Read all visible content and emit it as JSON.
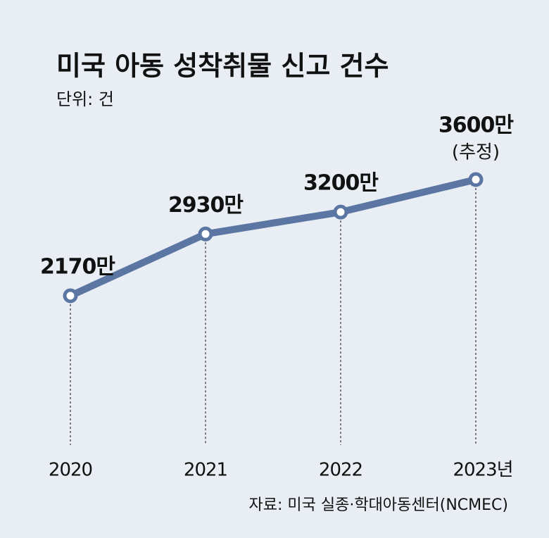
{
  "chart_data": {
    "type": "line",
    "title": "미국 아동 성착취물 신고 건수",
    "subtitle": "단위: 건",
    "categories": [
      "2020",
      "2021",
      "2022",
      "2023년"
    ],
    "series": [
      {
        "name": "신고 건수",
        "color": "#5b76a3",
        "values": [
          2170,
          2930,
          3200,
          3600
        ],
        "value_labels": [
          "2170만",
          "2930만",
          "3200만",
          "3600만"
        ]
      }
    ],
    "annotation": "(추정)",
    "source": "자료: 미국 실종·학대아동센터(NCMEC)"
  }
}
